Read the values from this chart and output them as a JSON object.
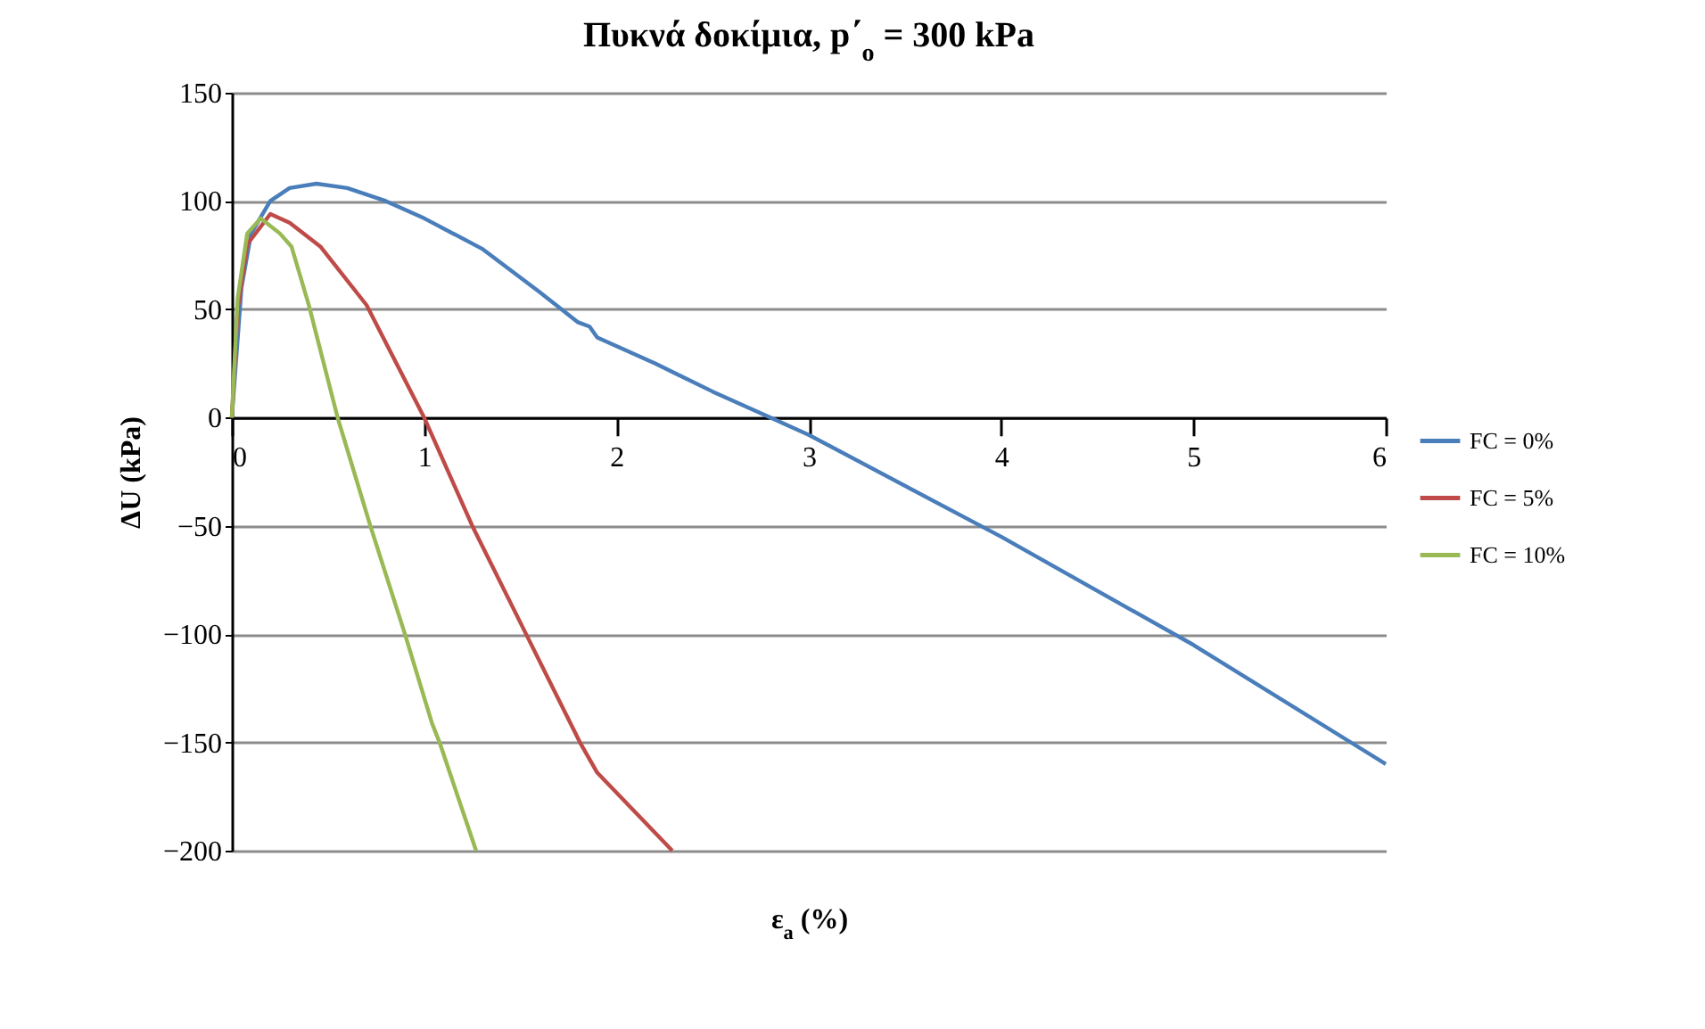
{
  "chart_data": {
    "type": "line",
    "title": "Πυκνά δοκίμια, p΄$_{o}$ = 300 kPa",
    "xlabel": "ε$_{a}$ (%)",
    "ylabel": "ΔU  (kPa)",
    "xlim": [
      0,
      6
    ],
    "xticks": [
      0,
      1,
      2,
      3,
      4,
      5,
      6
    ],
    "ylim": [
      -200,
      150
    ],
    "yticks": [
      -200,
      -150,
      -100,
      -50,
      0,
      50,
      100,
      150
    ],
    "grid": "y",
    "legend": "right",
    "marker": "none",
    "line_style": "solid",
    "series": [
      {
        "name": "FC = 0%",
        "color": "#4a7ebb",
        "x": [
          0,
          0.05,
          0.1,
          0.2,
          0.3,
          0.44,
          0.6,
          0.8,
          1.0,
          1.3,
          1.6,
          1.8,
          1.86,
          1.9,
          2.2,
          2.5,
          2.8,
          3,
          4,
          5,
          6
        ],
        "values": [
          0,
          60,
          85,
          100,
          106,
          108,
          106,
          100,
          92,
          78,
          58,
          44,
          42,
          37,
          25,
          12,
          0,
          -8,
          -55,
          -105,
          -160
        ]
      },
      {
        "name": "FC = 5%",
        "color": "#be4b48",
        "x": [
          0,
          0.03,
          0.08,
          0.2,
          0.3,
          0.46,
          0.7,
          1.0,
          1.25,
          1.53,
          1.81,
          1.9,
          2.29
        ],
        "values": [
          0,
          50,
          80,
          94,
          90,
          79,
          52,
          0,
          -50,
          -100,
          -150,
          -164,
          -200
        ]
      },
      {
        "name": "FC = 10%",
        "color": "#98b954",
        "x": [
          0,
          0.03,
          0.08,
          0.15,
          0.25,
          0.31,
          0.4,
          0.55,
          0.72,
          0.9,
          1.04,
          1.08,
          1.27
        ],
        "values": [
          0,
          55,
          85,
          92,
          85,
          79,
          52,
          0,
          -50,
          -100,
          -141,
          -150,
          -200
        ]
      }
    ]
  }
}
